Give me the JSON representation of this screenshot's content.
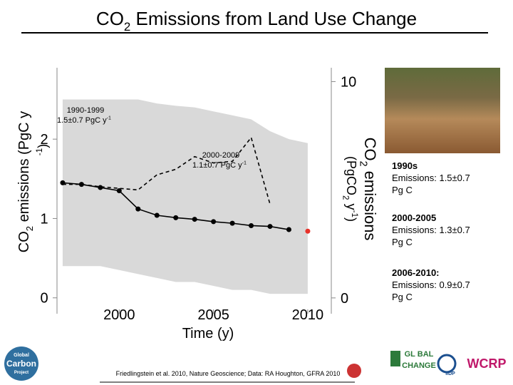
{
  "chart_data": {
    "type": "line",
    "title": {
      "main": "CO",
      "sub": "2",
      "rest": " Emissions from Land Use Change"
    },
    "x_label": "Time (y)",
    "y_label": {
      "main": "CO",
      "sub": "2",
      "rest": " emissions ",
      "unit": "(PgC y",
      "sup": "-1",
      "close": ")"
    },
    "y2_label": {
      "main": "CO",
      "sub": "2",
      "rest": " emissions",
      "unit": "(PgCO",
      "unit_sub": "2",
      "unit_rest": " y",
      "sup": "-1",
      "close": ")"
    },
    "x": [
      1997,
      1998,
      1999,
      2000,
      2001,
      2002,
      2003,
      2004,
      2005,
      2006,
      2007,
      2008,
      2009,
      2010
    ],
    "xlim": [
      1996.7,
      2011.25
    ],
    "xticks": [
      2000,
      2005,
      2010
    ],
    "ylim": [
      -0.2,
      2.9
    ],
    "yticks": [
      0,
      1,
      2
    ],
    "y2lim": [
      -0.73,
      10.64
    ],
    "y2ticks": [
      0,
      10
    ],
    "band": {
      "color": "#d9d9d9",
      "upper": [
        2.5,
        2.5,
        2.5,
        2.5,
        2.5,
        2.45,
        2.42,
        2.4,
        2.35,
        2.3,
        2.25,
        2.1,
        2.0,
        1.95
      ],
      "lower": [
        0.4,
        0.4,
        0.4,
        0.35,
        0.3,
        0.25,
        0.2,
        0.2,
        0.15,
        0.1,
        0.1,
        0.05,
        0.05,
        0.05
      ]
    },
    "series": [
      {
        "color": "#000000",
        "style": "solid",
        "markers": true,
        "values": [
          1.45,
          1.43,
          1.39,
          1.35,
          1.12,
          1.04,
          1.01,
          0.99,
          0.96,
          0.94,
          0.91,
          0.9,
          0.86,
          null
        ]
      },
      {
        "color": "#000000",
        "style": "dashed",
        "markers": false,
        "values": [
          1.43,
          1.43,
          1.4,
          1.38,
          1.36,
          1.55,
          1.62,
          1.78,
          1.7,
          1.72,
          2.02,
          1.18,
          null,
          null
        ]
      },
      {
        "color": "#e8322a",
        "style": "none",
        "markers": true,
        "values": [
          null,
          null,
          null,
          null,
          null,
          null,
          null,
          null,
          null,
          null,
          null,
          null,
          null,
          0.84
        ]
      }
    ],
    "annotations": [
      {
        "period": "1990-1999",
        "text": "1.5±0.7 PgC y",
        "sup": "-1"
      },
      {
        "period": "2000-2009",
        "text": "1.1±0.7 PgC y",
        "sup": "-1"
      }
    ],
    "side_notes": [
      {
        "title": "1990s",
        "lines": [
          "Emissions: 1.5±0.7",
          "Pg C"
        ]
      },
      {
        "title": "2000-2005",
        "lines": [
          "Emissions: 1.3±0.7",
          "Pg C"
        ]
      },
      {
        "title": "2006-2010:",
        "lines": [
          "Emissions: 0.9±0.7",
          "Pg C"
        ]
      }
    ],
    "citation": "Friedlingstein et al. 2010, Nature Geoscience; Data: RA Houghton, GFRA 2010",
    "logos": [
      "Global",
      "Carbon",
      "Project",
      "GL BAL",
      "CHANGE",
      "WCRP",
      "IIDP"
    ]
  }
}
